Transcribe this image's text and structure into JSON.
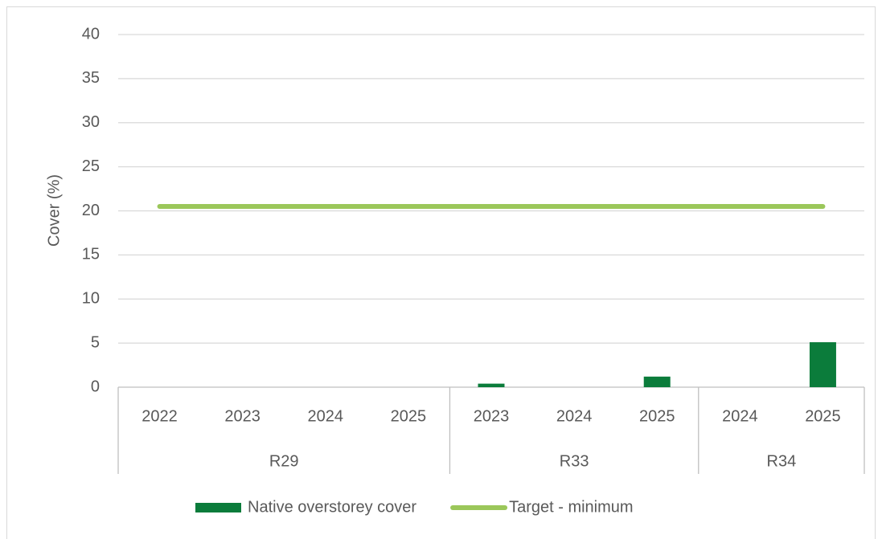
{
  "chart_data": {
    "type": "bar",
    "y_label": "Cover (%)",
    "groups": [
      {
        "name": "R29",
        "categories": [
          "2022",
          "2023",
          "2024",
          "2025"
        ]
      },
      {
        "name": "R33",
        "categories": [
          "2023",
          "2024",
          "2025"
        ]
      },
      {
        "name": "R34",
        "categories": [
          "2024",
          "2025"
        ]
      }
    ],
    "series": [
      {
        "name": "Native overstorey cover",
        "type": "bar",
        "color": "#0b7c3b",
        "values": [
          0,
          0,
          0,
          0,
          0.4,
          0,
          1.2,
          0,
          5.1
        ]
      },
      {
        "name": "Target - minimum",
        "type": "line",
        "color": "#9bc75a",
        "values": [
          20.5,
          20.5,
          20.5,
          20.5,
          20.5,
          20.5,
          20.5,
          20.5,
          20.5
        ]
      }
    ],
    "ylim": [
      0,
      40
    ],
    "yticks": [
      0,
      5,
      10,
      15,
      20,
      25,
      30,
      35,
      40
    ],
    "grid": true,
    "legend": "bottom"
  }
}
